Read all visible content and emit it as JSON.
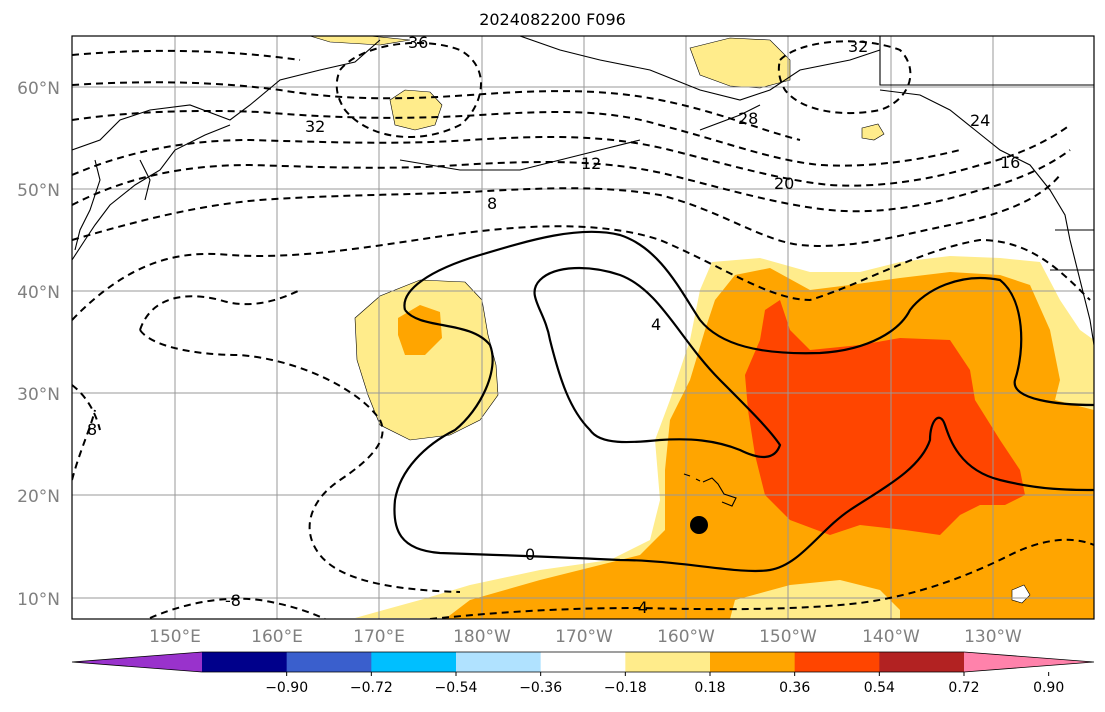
{
  "title": "2024082200 F096",
  "map": {
    "lat_labels": [
      "60°N",
      "50°N",
      "40°N",
      "30°N",
      "20°N",
      "10°N"
    ],
    "lon_labels": [
      "150°E",
      "160°E",
      "170°E",
      "180°W",
      "170°W",
      "160°W",
      "150°W",
      "140°W",
      "130°W"
    ],
    "contour_labels": [
      "36",
      "32",
      "32",
      "28",
      "24",
      "16",
      "12",
      "8",
      "20",
      "8",
      "-8",
      "4",
      "0",
      "-4"
    ],
    "marker": "storm-center-dot"
  },
  "colorbar": {
    "ticks": [
      "−0.90",
      "−0.72",
      "−0.54",
      "−0.36",
      "−0.18",
      "0.18",
      "0.36",
      "0.54",
      "0.72",
      "0.90"
    ],
    "colors": [
      "#9932cc",
      "#00008b",
      "#3a5fcd",
      "#00bfff",
      "#b0e2ff",
      "#ffffff",
      "#ffec8b",
      "#ffa500",
      "#ff4500",
      "#b22222",
      "#ff82ab"
    ]
  }
}
